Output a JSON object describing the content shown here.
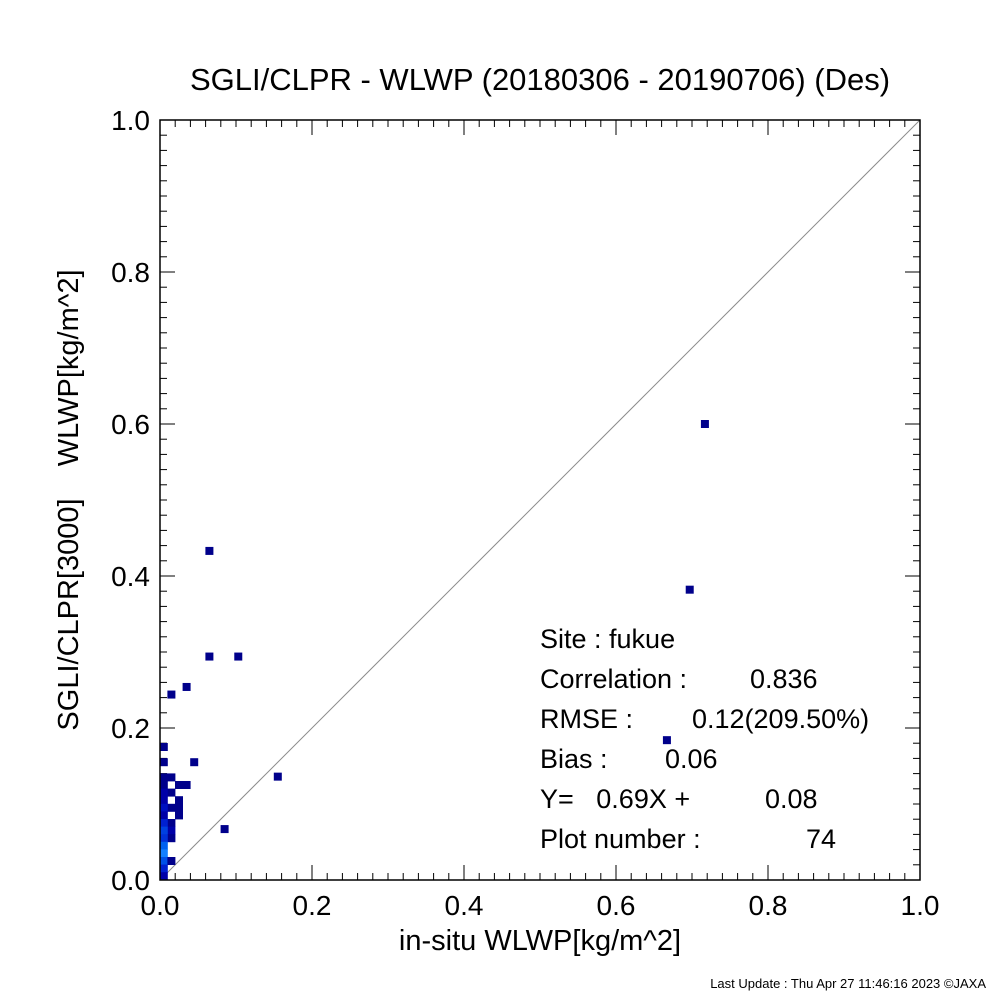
{
  "chart_data": {
    "type": "scatter",
    "title": "SGLI/CLPR - WLWP (20180306 - 20190706) (Des)",
    "xlabel": "in-situ WLWP[kg/m^2]",
    "ylabel": "SGLI/CLPR[3000]    WLWP[kg/m^2]",
    "xlim": [
      0.0,
      1.0
    ],
    "ylim": [
      0.0,
      1.0
    ],
    "x_ticks": [
      "0.0",
      "0.2",
      "0.4",
      "0.6",
      "0.8",
      "1.0"
    ],
    "y_ticks": [
      "0.0",
      "0.2",
      "0.4",
      "0.6",
      "0.8",
      "1.0"
    ],
    "grid": false,
    "reference_line": "y = x",
    "points": [
      {
        "x": 0.717,
        "y": 0.6,
        "color": "#00008b"
      },
      {
        "x": 0.697,
        "y": 0.382,
        "color": "#00008b"
      },
      {
        "x": 0.667,
        "y": 0.184,
        "color": "#00008b"
      },
      {
        "x": 0.065,
        "y": 0.433,
        "color": "#00008b"
      },
      {
        "x": 0.065,
        "y": 0.294,
        "color": "#00008b"
      },
      {
        "x": 0.103,
        "y": 0.294,
        "color": "#00008b"
      },
      {
        "x": 0.035,
        "y": 0.254,
        "color": "#00008b"
      },
      {
        "x": 0.015,
        "y": 0.244,
        "color": "#00008b"
      },
      {
        "x": 0.155,
        "y": 0.136,
        "color": "#00008b"
      },
      {
        "x": 0.085,
        "y": 0.067,
        "color": "#00008b"
      },
      {
        "x": 0.045,
        "y": 0.155,
        "color": "#00008b"
      },
      {
        "x": 0.005,
        "y": 0.175,
        "color": "#00008b"
      },
      {
        "x": 0.005,
        "y": 0.155,
        "color": "#00008b"
      },
      {
        "x": 0.005,
        "y": 0.135,
        "color": "#00008b"
      },
      {
        "x": 0.015,
        "y": 0.135,
        "color": "#00008b"
      },
      {
        "x": 0.025,
        "y": 0.125,
        "color": "#00008b"
      },
      {
        "x": 0.035,
        "y": 0.125,
        "color": "#00008b"
      },
      {
        "x": 0.005,
        "y": 0.125,
        "color": "#00008b"
      },
      {
        "x": 0.015,
        "y": 0.115,
        "color": "#00008b"
      },
      {
        "x": 0.005,
        "y": 0.115,
        "color": "#0000a8"
      },
      {
        "x": 0.025,
        "y": 0.105,
        "color": "#00008b"
      },
      {
        "x": 0.005,
        "y": 0.105,
        "color": "#0000a8"
      },
      {
        "x": 0.015,
        "y": 0.095,
        "color": "#00008b"
      },
      {
        "x": 0.025,
        "y": 0.095,
        "color": "#00008b"
      },
      {
        "x": 0.005,
        "y": 0.095,
        "color": "#0010c0"
      },
      {
        "x": 0.025,
        "y": 0.085,
        "color": "#00008b"
      },
      {
        "x": 0.005,
        "y": 0.085,
        "color": "#0000a8"
      },
      {
        "x": 0.015,
        "y": 0.075,
        "color": "#00008b"
      },
      {
        "x": 0.005,
        "y": 0.075,
        "color": "#0020d0"
      },
      {
        "x": 0.015,
        "y": 0.065,
        "color": "#0000a8"
      },
      {
        "x": 0.005,
        "y": 0.065,
        "color": "#0040e0"
      },
      {
        "x": 0.015,
        "y": 0.055,
        "color": "#00008b"
      },
      {
        "x": 0.005,
        "y": 0.055,
        "color": "#0030d8"
      },
      {
        "x": 0.005,
        "y": 0.045,
        "color": "#0060f0"
      },
      {
        "x": 0.005,
        "y": 0.035,
        "color": "#1480ff"
      },
      {
        "x": 0.005,
        "y": 0.025,
        "color": "#0050e8"
      },
      {
        "x": 0.015,
        "y": 0.025,
        "color": "#00008b"
      },
      {
        "x": 0.005,
        "y": 0.015,
        "color": "#0020d0"
      },
      {
        "x": 0.005,
        "y": 0.005,
        "color": "#0000a8"
      }
    ],
    "annotations": [
      {
        "label": "Site : fukue",
        "value": ""
      },
      {
        "label": "Correlation :",
        "value": "0.836"
      },
      {
        "label": "RMSE :",
        "value": "0.12(209.50%)"
      },
      {
        "label": "Bias :",
        "value": "0.06"
      },
      {
        "label": "Y=   0.69X +",
        "value": "0.08"
      },
      {
        "label": "Plot number :",
        "value": "74"
      }
    ]
  },
  "footer": "Last Update : Thu Apr 27 11:46:16 2023  ©JAXA"
}
